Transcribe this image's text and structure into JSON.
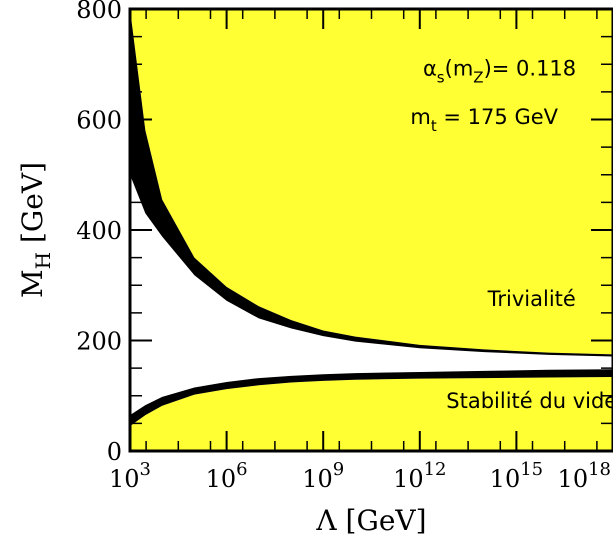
{
  "chart_data": {
    "type": "area",
    "xlabel": "Λ [GeV]",
    "ylabel": "M_H [GeV]",
    "x_scale": "log",
    "xlim": [
      1000,
      1e+18
    ],
    "ylim": [
      0,
      800
    ],
    "x_ticks": [
      {
        "value": 1000,
        "base": "10",
        "exp": "3"
      },
      {
        "value": 1000000.0,
        "base": "10",
        "exp": "6"
      },
      {
        "value": 1000000000.0,
        "base": "10",
        "exp": "9"
      },
      {
        "value": 1000000000000.0,
        "base": "10",
        "exp": "12"
      },
      {
        "value": 1000000000000000.0,
        "base": "10",
        "exp": "15"
      },
      {
        "value": 1e+18,
        "base": "10",
        "exp": "18"
      }
    ],
    "y_ticks": [
      0,
      200,
      400,
      600,
      800
    ],
    "fill_color": "#ffff33",
    "band_color": "#000000",
    "bands": [
      {
        "region": "triviality",
        "x": [
          1000,
          3000,
          10000.0,
          100000.0,
          1000000.0,
          10000000.0,
          100000000.0,
          1000000000.0,
          10000000000.0,
          1000000000000.0,
          100000000000000.0,
          1e+16,
          1e+18
        ],
        "upper": [
          800,
          580,
          455,
          350,
          297,
          262,
          237,
          218,
          207,
          192,
          184,
          178,
          175
        ],
        "lower": [
          500,
          430,
          388,
          318,
          272,
          240,
          222,
          208,
          198,
          186,
          179,
          174,
          171
        ]
      },
      {
        "region": "stability",
        "x": [
          1000,
          3000,
          10000.0,
          100000.0,
          1000000.0,
          10000000.0,
          100000000.0,
          1000000000.0,
          10000000000.0,
          1000000000000.0,
          100000000000000.0,
          1e+16,
          1e+18
        ],
        "upper": [
          65,
          83,
          98,
          115,
          125,
          132,
          136,
          139,
          141,
          143,
          145,
          147,
          148
        ],
        "lower": [
          45,
          65,
          82,
          102,
          112,
          119,
          124,
          127,
          129,
          131,
          132,
          133,
          134
        ]
      }
    ],
    "annotations": [
      {
        "id": "alpha",
        "x": 300000000000000.0,
        "y": 680,
        "parts": [
          "α",
          "s",
          "(m",
          "Z",
          ")= 0.118"
        ]
      },
      {
        "id": "mtop",
        "x": 100000000000000.0,
        "y": 592,
        "parts": [
          "m",
          "t",
          " = 175 GeV"
        ]
      },
      {
        "id": "trivialite",
        "x": 3000000000000000.0,
        "y": 262,
        "text": "Trivialité"
      },
      {
        "id": "stabilite",
        "x": 3000000000000000.0,
        "y": 78,
        "text": "Stabilité du vide"
      }
    ]
  }
}
